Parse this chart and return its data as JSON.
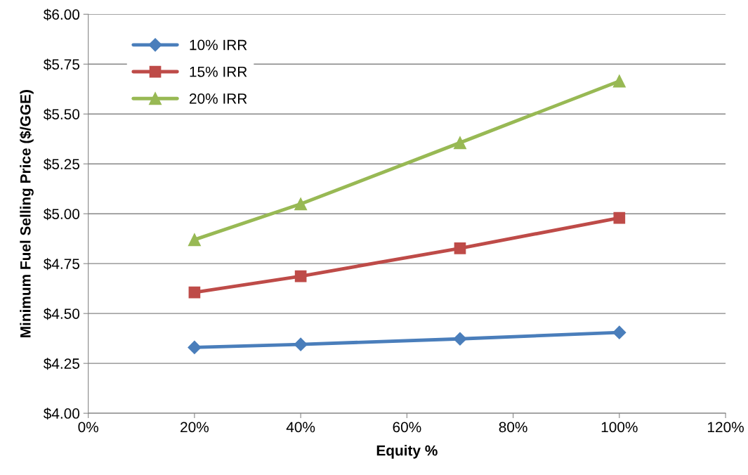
{
  "chart_data": {
    "type": "line",
    "xlabel": "Equity %",
    "ylabel": "Minimum Fuel Selling Price ($/GGE)",
    "series": [
      {
        "name": "10% IRR",
        "color": "#4a7ebb",
        "marker": "diamond",
        "x": [
          20,
          40,
          70,
          100
        ],
        "values": [
          4.33,
          4.345,
          4.373,
          4.405
        ]
      },
      {
        "name": "15% IRR",
        "color": "#be4b48",
        "marker": "square",
        "x": [
          20,
          40,
          70,
          100
        ],
        "values": [
          4.606,
          4.687,
          4.827,
          4.979
        ]
      },
      {
        "name": "20% IRR",
        "color": "#98b954",
        "marker": "triangle",
        "x": [
          20,
          40,
          70,
          100
        ],
        "values": [
          4.87,
          5.049,
          5.356,
          5.665
        ]
      }
    ],
    "xlim": [
      0,
      120
    ],
    "xticks": [
      {
        "value": 0,
        "label": "0%"
      },
      {
        "value": 20,
        "label": "20%"
      },
      {
        "value": 40,
        "label": "40%"
      },
      {
        "value": 60,
        "label": "60%"
      },
      {
        "value": 80,
        "label": "80%"
      },
      {
        "value": 100,
        "label": "100%"
      },
      {
        "value": 120,
        "label": "120%"
      }
    ],
    "ylim": [
      4.0,
      6.0
    ],
    "yticks": [
      {
        "value": 4.0,
        "label": "$4.00"
      },
      {
        "value": 4.25,
        "label": "$4.25"
      },
      {
        "value": 4.5,
        "label": "$4.50"
      },
      {
        "value": 4.75,
        "label": "$4.75"
      },
      {
        "value": 5.0,
        "label": "$5.00"
      },
      {
        "value": 5.25,
        "label": "$5.25"
      },
      {
        "value": 5.5,
        "label": "$5.50"
      },
      {
        "value": 5.75,
        "label": "$5.75"
      },
      {
        "value": 6.0,
        "label": "$6.00"
      }
    ],
    "grid": "y",
    "legend": "top left",
    "line_style": "solid"
  }
}
